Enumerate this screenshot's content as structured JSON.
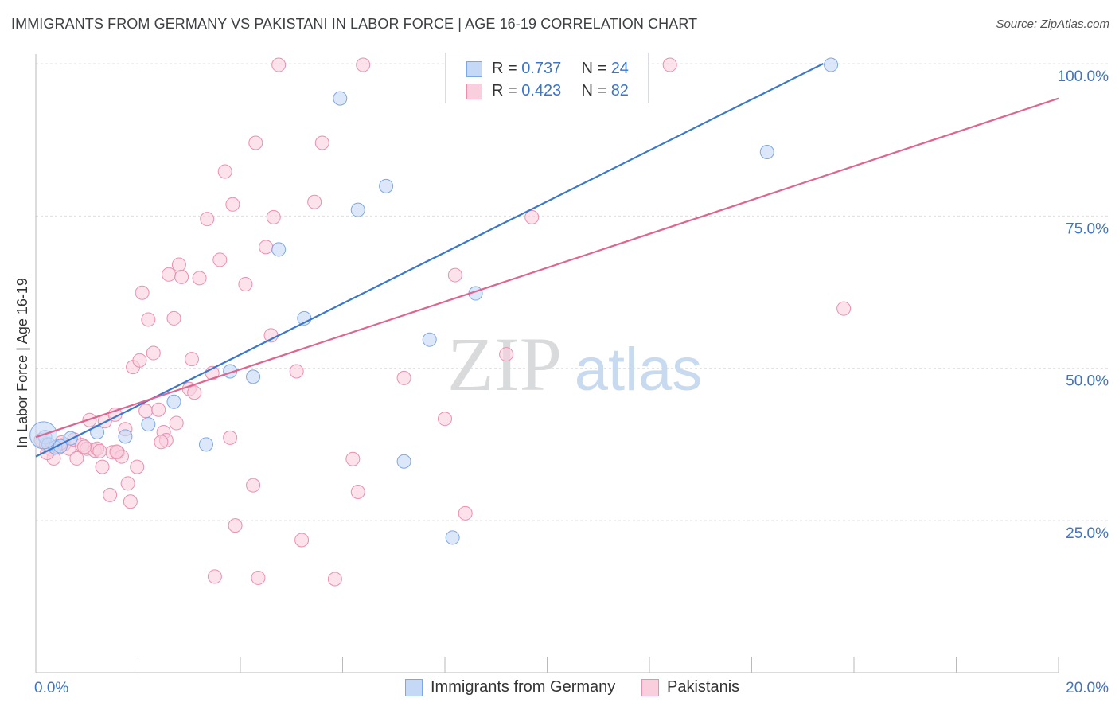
{
  "header": {
    "title": "IMMIGRANTS FROM GERMANY VS PAKISTANI IN LABOR FORCE | AGE 16-19 CORRELATION CHART",
    "source": "Source: ZipAtlas.com"
  },
  "watermark": {
    "zip": "ZIP",
    "atlas": "atlas"
  },
  "legend_top": {
    "rows": [
      {
        "r_label": "R = ",
        "r_value": "0.737",
        "n_label": "N = ",
        "n_value": "24"
      },
      {
        "r_label": "R = ",
        "r_value": "0.423",
        "n_label": "N = ",
        "n_value": "82"
      }
    ]
  },
  "chart_data": {
    "type": "scatter",
    "title": "IMMIGRANTS FROM GERMANY VS PAKISTANI IN LABOR FORCE | AGE 16-19 CORRELATION CHART",
    "xlabel": "",
    "ylabel": "In Labor Force | Age 16-19",
    "xlim": [
      0,
      20
    ],
    "ylim": [
      0,
      102
    ],
    "x_tick_labels": [
      "0.0%",
      "20.0%"
    ],
    "y_tick_labels": [
      "25.0%",
      "50.0%",
      "75.0%",
      "100.0%"
    ],
    "y_ticks": [
      25,
      50,
      75,
      100
    ],
    "grid": true,
    "legend_position": "top-center",
    "series": [
      {
        "name": "Immigrants from Germany",
        "color": "#7da7e4",
        "fill": "#c5d8f5",
        "line_color": "#3a78cf",
        "r": 0.737,
        "n": 24,
        "trend": {
          "x0": 0.0,
          "y0": 35.5,
          "x1": 15.4,
          "y1": 100.0
        },
        "points": [
          [
            0.18,
            38.7
          ],
          [
            0.25,
            37.5
          ],
          [
            0.38,
            37.0
          ],
          [
            0.48,
            37.2
          ],
          [
            0.68,
            38.5
          ],
          [
            1.2,
            39.5
          ],
          [
            1.75,
            38.8
          ],
          [
            2.2,
            40.8
          ],
          [
            2.7,
            44.5
          ],
          [
            3.33,
            37.5
          ],
          [
            3.8,
            49.5
          ],
          [
            4.25,
            48.6
          ],
          [
            4.75,
            69.5
          ],
          [
            5.25,
            58.2
          ],
          [
            5.95,
            94.3
          ],
          [
            6.3,
            76.0
          ],
          [
            6.85,
            79.9
          ],
          [
            7.2,
            34.7
          ],
          [
            7.7,
            54.7
          ],
          [
            8.15,
            22.2
          ],
          [
            8.6,
            62.3
          ],
          [
            11.8,
            99.8
          ],
          [
            14.3,
            85.5
          ],
          [
            15.55,
            99.8
          ]
        ],
        "large_point": [
          0.15,
          39.0
        ]
      },
      {
        "name": "Pakistanis",
        "color": "#ec8fae",
        "fill": "#f9cfdd",
        "line_color": "#e0648f",
        "r": 0.423,
        "n": 82,
        "trend": {
          "x0": 0.0,
          "y0": 38.7,
          "x1": 20.0,
          "y1": 94.3
        },
        "points": [
          [
            0.1,
            38.2
          ],
          [
            0.2,
            37.5
          ],
          [
            0.3,
            36.7
          ],
          [
            0.35,
            35.2
          ],
          [
            0.45,
            37.0
          ],
          [
            0.55,
            37.5
          ],
          [
            0.65,
            36.8
          ],
          [
            0.75,
            38.3
          ],
          [
            0.8,
            35.2
          ],
          [
            0.9,
            37.4
          ],
          [
            1.0,
            36.8
          ],
          [
            1.05,
            41.5
          ],
          [
            1.15,
            36.5
          ],
          [
            1.2,
            36.8
          ],
          [
            1.3,
            33.8
          ],
          [
            1.35,
            41.3
          ],
          [
            1.45,
            29.2
          ],
          [
            1.5,
            36.2
          ],
          [
            1.55,
            42.4
          ],
          [
            1.6,
            36.2
          ],
          [
            1.68,
            35.5
          ],
          [
            1.75,
            40.0
          ],
          [
            1.8,
            31.1
          ],
          [
            1.85,
            28.1
          ],
          [
            1.9,
            50.2
          ],
          [
            1.98,
            33.8
          ],
          [
            2.03,
            51.3
          ],
          [
            2.08,
            62.4
          ],
          [
            2.15,
            43.0
          ],
          [
            2.2,
            58.0
          ],
          [
            2.3,
            52.5
          ],
          [
            2.4,
            43.2
          ],
          [
            2.5,
            39.5
          ],
          [
            2.55,
            38.2
          ],
          [
            2.6,
            65.4
          ],
          [
            2.7,
            58.2
          ],
          [
            2.75,
            41.0
          ],
          [
            2.8,
            67.0
          ],
          [
            2.85,
            65.0
          ],
          [
            3.0,
            46.6
          ],
          [
            3.05,
            51.5
          ],
          [
            3.1,
            46.0
          ],
          [
            3.2,
            64.8
          ],
          [
            3.35,
            74.5
          ],
          [
            3.45,
            49.2
          ],
          [
            3.5,
            15.8
          ],
          [
            3.6,
            67.8
          ],
          [
            3.7,
            82.3
          ],
          [
            3.8,
            38.6
          ],
          [
            3.85,
            76.9
          ],
          [
            3.9,
            24.2
          ],
          [
            4.1,
            63.8
          ],
          [
            4.25,
            30.8
          ],
          [
            4.3,
            87.0
          ],
          [
            4.35,
            15.6
          ],
          [
            4.5,
            69.9
          ],
          [
            4.6,
            55.4
          ],
          [
            4.65,
            74.8
          ],
          [
            4.75,
            99.8
          ],
          [
            5.1,
            49.5
          ],
          [
            5.2,
            21.8
          ],
          [
            5.45,
            77.3
          ],
          [
            5.6,
            87.0
          ],
          [
            5.85,
            15.4
          ],
          [
            6.2,
            35.1
          ],
          [
            6.3,
            29.7
          ],
          [
            6.4,
            99.8
          ],
          [
            7.2,
            48.4
          ],
          [
            8.0,
            41.7
          ],
          [
            8.2,
            65.3
          ],
          [
            8.4,
            26.2
          ],
          [
            9.0,
            99.8
          ],
          [
            9.2,
            52.3
          ],
          [
            9.7,
            74.8
          ],
          [
            12.4,
            99.8
          ],
          [
            15.8,
            59.8
          ],
          [
            0.5,
            37.8
          ],
          [
            0.95,
            37.1
          ],
          [
            1.25,
            36.4
          ],
          [
            0.22,
            36.1
          ],
          [
            2.45,
            37.9
          ],
          [
            1.58,
            36.3
          ]
        ]
      }
    ]
  },
  "legend_bottom": {
    "items": [
      {
        "label": "Immigrants from Germany"
      },
      {
        "label": "Pakistanis"
      }
    ]
  }
}
